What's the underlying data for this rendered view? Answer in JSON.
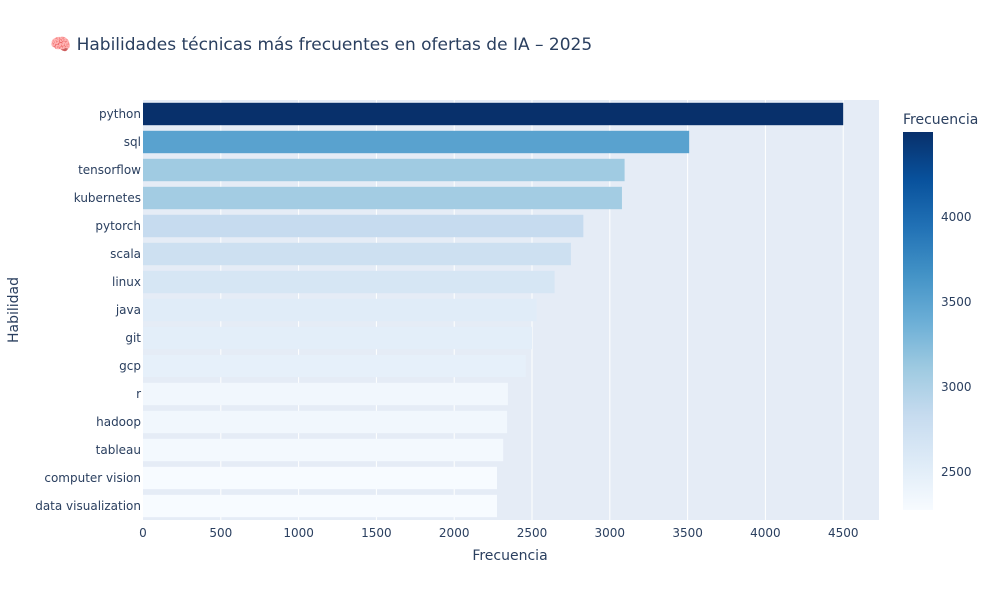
{
  "chart_data": {
    "type": "bar",
    "orientation": "horizontal",
    "title": "🧠 Habilidades técnicas más frecuentes en ofertas de IA – 2025",
    "xlabel": "Frecuencia",
    "ylabel": "Habilidad",
    "xlim": [
      0,
      4730
    ],
    "x_ticks": [
      0,
      500,
      1000,
      1500,
      2000,
      2500,
      3000,
      3500,
      4000,
      4500
    ],
    "categories": [
      "python",
      "sql",
      "tensorflow",
      "kubernetes",
      "pytorch",
      "scala",
      "linux",
      "java",
      "git",
      "gcp",
      "r",
      "hadoop",
      "tableau",
      "computer vision",
      "data visualization"
    ],
    "values": [
      4500,
      3510,
      3095,
      3078,
      2830,
      2750,
      2645,
      2530,
      2500,
      2460,
      2345,
      2340,
      2315,
      2275,
      2275
    ],
    "grid": true,
    "colorscale": "Blues",
    "colorbar": {
      "title": "Frecuencia",
      "range": [
        2275,
        4500
      ],
      "ticks": [
        2500,
        3000,
        3500,
        4000
      ]
    },
    "colors": {
      "plot_bg": "#e5ecf6",
      "grid": "#ffffff",
      "text": "#2a3f5f"
    }
  }
}
